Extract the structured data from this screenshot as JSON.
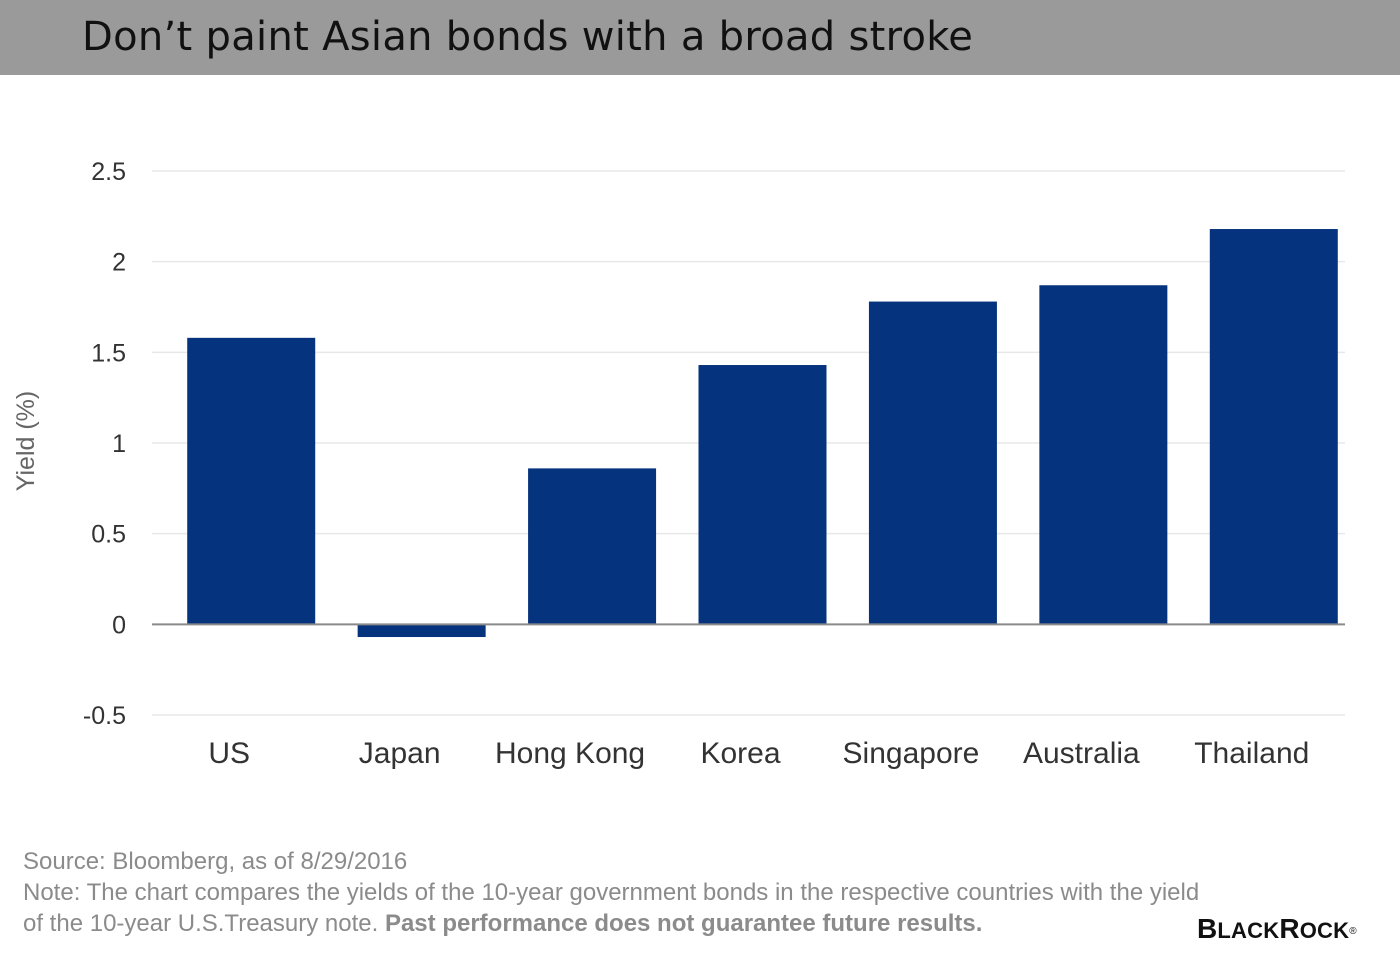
{
  "header": {
    "title": "Don’t paint Asian bonds with a broad stroke"
  },
  "chart_data": {
    "type": "bar",
    "title": "Don’t paint Asian bonds with a broad stroke",
    "xlabel": "",
    "ylabel": "Yield (%)",
    "categories": [
      "US",
      "Japan",
      "Hong Kong",
      "Korea",
      "Singapore",
      "Australia",
      "Thailand"
    ],
    "values": [
      1.58,
      -0.07,
      0.86,
      1.43,
      1.78,
      1.87,
      2.18
    ],
    "ylim": [
      -0.5,
      2.5
    ],
    "yticks": [
      -0.5,
      0,
      0.5,
      1,
      1.5,
      2,
      2.5
    ],
    "ytick_labels": [
      "-0.5",
      "0",
      "0.5",
      "1",
      "1.5",
      "2",
      "2.5"
    ],
    "grid": true,
    "legend": "none",
    "colors": {
      "bar": "#06337d",
      "grid": "#e8e8e8",
      "zero_line": "#8a8a8a",
      "text": "#333333"
    }
  },
  "footer": {
    "source": "Source: Bloomberg, as of 8/29/2016",
    "note_line1": "Note: The chart compares the yields of the 10-year government bonds in the respective countries with the yield",
    "note_line2": "of the 10-year U.S.Treasury note.",
    "disclaimer": "Past performance does not guarantee future results."
  },
  "logo": {
    "text": "BLACKROCK",
    "mark": "®"
  }
}
